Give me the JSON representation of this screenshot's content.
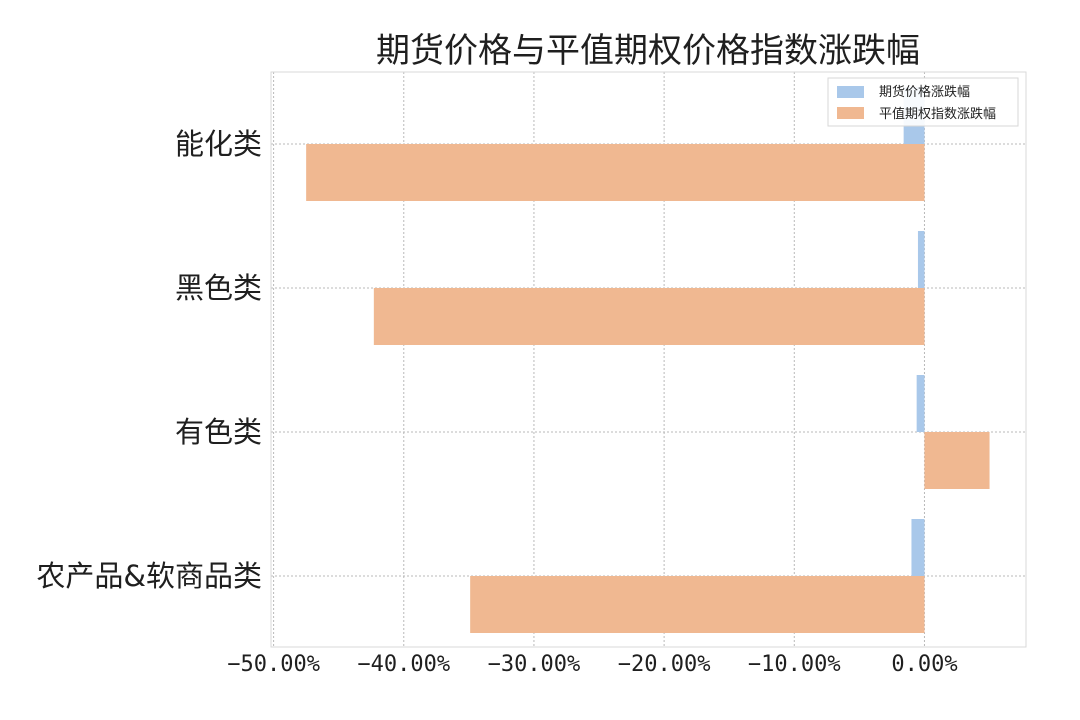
{
  "chart_data": {
    "type": "bar",
    "orientation": "horizontal",
    "title": "期货价格与平值期权价格指数涨跌幅",
    "categories": [
      "能化类",
      "黑色类",
      "有色类",
      "农产品&软商品类"
    ],
    "series": [
      {
        "name": "期货价格涨跌幅",
        "color": "#a9c8ea",
        "values": [
          -1.6,
          -0.5,
          -0.6,
          -1.0
        ]
      },
      {
        "name": "平值期权指数涨跌幅",
        "color": "#f0b891",
        "values": [
          -47.5,
          -42.3,
          5.0,
          -34.9
        ]
      }
    ],
    "xlim": [
      -50.2,
      7.8
    ],
    "xticks": [
      {
        "value": -50,
        "label": "−50.00%"
      },
      {
        "value": -40,
        "label": "−40.00%"
      },
      {
        "value": -30,
        "label": "−30.00%"
      },
      {
        "value": -20,
        "label": "−20.00%"
      },
      {
        "value": -10,
        "label": "−10.00%"
      },
      {
        "value": 0,
        "label": "0.00%"
      }
    ],
    "xlabel": "",
    "ylabel": "",
    "grid": true,
    "legend_position": "top-right"
  }
}
